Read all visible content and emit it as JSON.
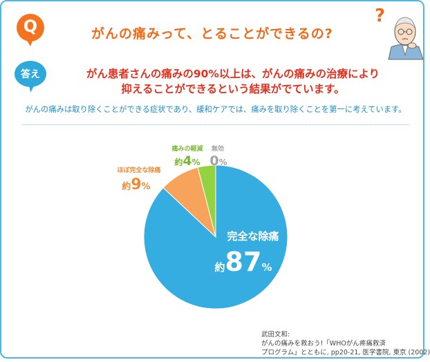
{
  "header": {
    "q_label": "Q",
    "question": "がんの痛みって、とることができるの?",
    "a_label": "答え",
    "answer_line1": "がん患者さんの痛みの90%以上は、がんの痛みの治療により",
    "answer_line2": "抑えることができるという結果がでています。",
    "note": "がんの痛みは取り除くことができる症状であり、緩和ケアでは、痛みを取り除くことを第一に考えています。"
  },
  "colors": {
    "complete": "#36ade0",
    "almost": "#f7a35c",
    "reduced": "#93d240",
    "none": "#bdbdbd",
    "accent_orange": "#ef6b1a",
    "accent_red": "#e2311f",
    "accent_blue": "#1f8cc8"
  },
  "chart_data": {
    "type": "pie",
    "title": "",
    "unit": "%",
    "series": [
      {
        "name": "完全な除痛",
        "prefix": "約",
        "value": 87,
        "color": "#36ade0"
      },
      {
        "name": "ほぼ完全な除痛",
        "prefix": "約",
        "value": 9,
        "color": "#f7a35c"
      },
      {
        "name": "痛みの軽減",
        "prefix": "約",
        "value": 4,
        "color": "#93d240"
      },
      {
        "name": "無効",
        "prefix": "",
        "value": 0,
        "color": "#bdbdbd"
      }
    ]
  },
  "citation": {
    "line1": "武田文和:",
    "line2": "がんの痛みを救おう!「WHOがん疼痛救済",
    "line3": "プログラム」とともに, pp20-21, 医学書院, 東京 (2002)"
  }
}
